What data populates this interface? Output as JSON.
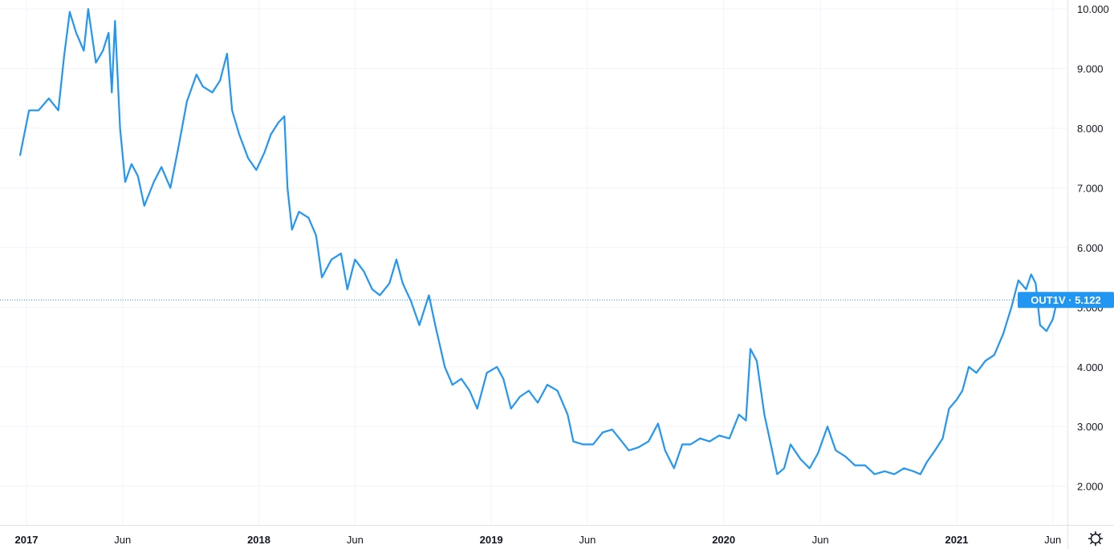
{
  "chart_data": {
    "type": "line",
    "series": [
      {
        "name": "OUT1V",
        "color": "#2196f3",
        "points": [
          [
            "2016-12-22",
            7.55
          ],
          [
            "2017-01-05",
            8.3
          ],
          [
            "2017-01-20",
            8.3
          ],
          [
            "2017-02-05",
            8.5
          ],
          [
            "2017-02-20",
            8.3
          ],
          [
            "2017-03-01",
            9.2
          ],
          [
            "2017-03-10",
            9.95
          ],
          [
            "2017-03-20",
            9.6
          ],
          [
            "2017-04-01",
            9.3
          ],
          [
            "2017-04-08",
            10.0
          ],
          [
            "2017-04-20",
            9.1
          ],
          [
            "2017-05-01",
            9.3
          ],
          [
            "2017-05-10",
            9.6
          ],
          [
            "2017-05-15",
            8.6
          ],
          [
            "2017-05-20",
            9.8
          ],
          [
            "2017-05-28",
            8.0
          ],
          [
            "2017-06-05",
            7.1
          ],
          [
            "2017-06-15",
            7.4
          ],
          [
            "2017-06-25",
            7.2
          ],
          [
            "2017-07-05",
            6.7
          ],
          [
            "2017-07-20",
            7.1
          ],
          [
            "2017-08-01",
            7.35
          ],
          [
            "2017-08-15",
            7.0
          ],
          [
            "2017-08-28",
            7.7
          ],
          [
            "2017-09-10",
            8.45
          ],
          [
            "2017-09-25",
            8.9
          ],
          [
            "2017-10-05",
            8.7
          ],
          [
            "2017-10-20",
            8.6
          ],
          [
            "2017-11-01",
            8.8
          ],
          [
            "2017-11-12",
            9.25
          ],
          [
            "2017-11-20",
            8.3
          ],
          [
            "2017-12-01",
            7.9
          ],
          [
            "2017-12-15",
            7.5
          ],
          [
            "2017-12-28",
            7.3
          ],
          [
            "2018-01-10",
            7.6
          ],
          [
            "2018-01-20",
            7.9
          ],
          [
            "2018-02-01",
            8.1
          ],
          [
            "2018-02-10",
            8.2
          ],
          [
            "2018-02-15",
            7.0
          ],
          [
            "2018-02-22",
            6.3
          ],
          [
            "2018-03-05",
            6.6
          ],
          [
            "2018-03-20",
            6.5
          ],
          [
            "2018-04-01",
            6.2
          ],
          [
            "2018-04-10",
            5.5
          ],
          [
            "2018-04-25",
            5.8
          ],
          [
            "2018-05-10",
            5.9
          ],
          [
            "2018-05-20",
            5.3
          ],
          [
            "2018-06-01",
            5.8
          ],
          [
            "2018-06-15",
            5.6
          ],
          [
            "2018-06-28",
            5.3
          ],
          [
            "2018-07-10",
            5.2
          ],
          [
            "2018-07-25",
            5.4
          ],
          [
            "2018-08-05",
            5.8
          ],
          [
            "2018-08-15",
            5.4
          ],
          [
            "2018-08-28",
            5.1
          ],
          [
            "2018-09-10",
            4.7
          ],
          [
            "2018-09-25",
            5.2
          ],
          [
            "2018-10-05",
            4.7
          ],
          [
            "2018-10-20",
            4.0
          ],
          [
            "2018-11-01",
            3.7
          ],
          [
            "2018-11-15",
            3.8
          ],
          [
            "2018-11-28",
            3.6
          ],
          [
            "2018-12-10",
            3.3
          ],
          [
            "2018-12-25",
            3.9
          ],
          [
            "2019-01-10",
            4.0
          ],
          [
            "2019-01-20",
            3.8
          ],
          [
            "2019-02-01",
            3.3
          ],
          [
            "2019-02-15",
            3.5
          ],
          [
            "2019-03-01",
            3.6
          ],
          [
            "2019-03-15",
            3.4
          ],
          [
            "2019-03-30",
            3.7
          ],
          [
            "2019-04-15",
            3.6
          ],
          [
            "2019-05-01",
            3.2
          ],
          [
            "2019-05-10",
            2.75
          ],
          [
            "2019-05-25",
            2.7
          ],
          [
            "2019-06-10",
            2.7
          ],
          [
            "2019-06-25",
            2.9
          ],
          [
            "2019-07-10",
            2.95
          ],
          [
            "2019-07-25",
            2.75
          ],
          [
            "2019-08-05",
            2.6
          ],
          [
            "2019-08-20",
            2.65
          ],
          [
            "2019-09-05",
            2.75
          ],
          [
            "2019-09-20",
            3.05
          ],
          [
            "2019-10-01",
            2.6
          ],
          [
            "2019-10-15",
            2.3
          ],
          [
            "2019-10-28",
            2.7
          ],
          [
            "2019-11-10",
            2.7
          ],
          [
            "2019-11-25",
            2.8
          ],
          [
            "2019-12-10",
            2.75
          ],
          [
            "2019-12-25",
            2.85
          ],
          [
            "2020-01-10",
            2.8
          ],
          [
            "2020-01-25",
            3.2
          ],
          [
            "2020-02-05",
            3.1
          ],
          [
            "2020-02-12",
            4.3
          ],
          [
            "2020-02-22",
            4.1
          ],
          [
            "2020-03-05",
            3.2
          ],
          [
            "2020-03-15",
            2.7
          ],
          [
            "2020-03-25",
            2.2
          ],
          [
            "2020-04-05",
            2.3
          ],
          [
            "2020-04-15",
            2.7
          ],
          [
            "2020-05-01",
            2.45
          ],
          [
            "2020-05-15",
            2.3
          ],
          [
            "2020-05-28",
            2.55
          ],
          [
            "2020-06-12",
            3.0
          ],
          [
            "2020-06-25",
            2.6
          ],
          [
            "2020-07-10",
            2.5
          ],
          [
            "2020-07-25",
            2.35
          ],
          [
            "2020-08-10",
            2.35
          ],
          [
            "2020-08-25",
            2.2
          ],
          [
            "2020-09-10",
            2.25
          ],
          [
            "2020-09-25",
            2.2
          ],
          [
            "2020-10-10",
            2.3
          ],
          [
            "2020-10-25",
            2.25
          ],
          [
            "2020-11-05",
            2.2
          ],
          [
            "2020-11-15",
            2.4
          ],
          [
            "2020-11-28",
            2.6
          ],
          [
            "2020-12-10",
            2.8
          ],
          [
            "2020-12-20",
            3.3
          ],
          [
            "2021-01-01",
            3.45
          ],
          [
            "2021-01-10",
            3.6
          ],
          [
            "2021-01-20",
            4.0
          ],
          [
            "2021-02-01",
            3.9
          ],
          [
            "2021-02-15",
            4.1
          ],
          [
            "2021-03-01",
            4.2
          ],
          [
            "2021-03-15",
            4.55
          ],
          [
            "2021-03-28",
            5.0
          ],
          [
            "2021-04-08",
            5.45
          ],
          [
            "2021-04-20",
            5.3
          ],
          [
            "2021-04-28",
            5.55
          ],
          [
            "2021-05-05",
            5.4
          ],
          [
            "2021-05-12",
            4.7
          ],
          [
            "2021-05-22",
            4.6
          ],
          [
            "2021-06-01",
            4.8
          ],
          [
            "2021-06-08",
            5.122
          ]
        ]
      }
    ],
    "x_ticks": [
      "2017",
      "Jun",
      "2018",
      "Jun",
      "2019",
      "Jun",
      "2020",
      "Jun",
      "2021",
      "Jun"
    ],
    "y_ticks": [
      "2.000",
      "3.000",
      "4.000",
      "5.000",
      "6.000",
      "7.000",
      "8.000",
      "9.000",
      "10.000"
    ],
    "last_value_label": "OUT1V · 5.122",
    "last_value": 5.122,
    "ylim": [
      1.35,
      10.15
    ],
    "grid": true,
    "y_axis_side": "right"
  },
  "icons": {
    "settings": "gear-icon"
  }
}
